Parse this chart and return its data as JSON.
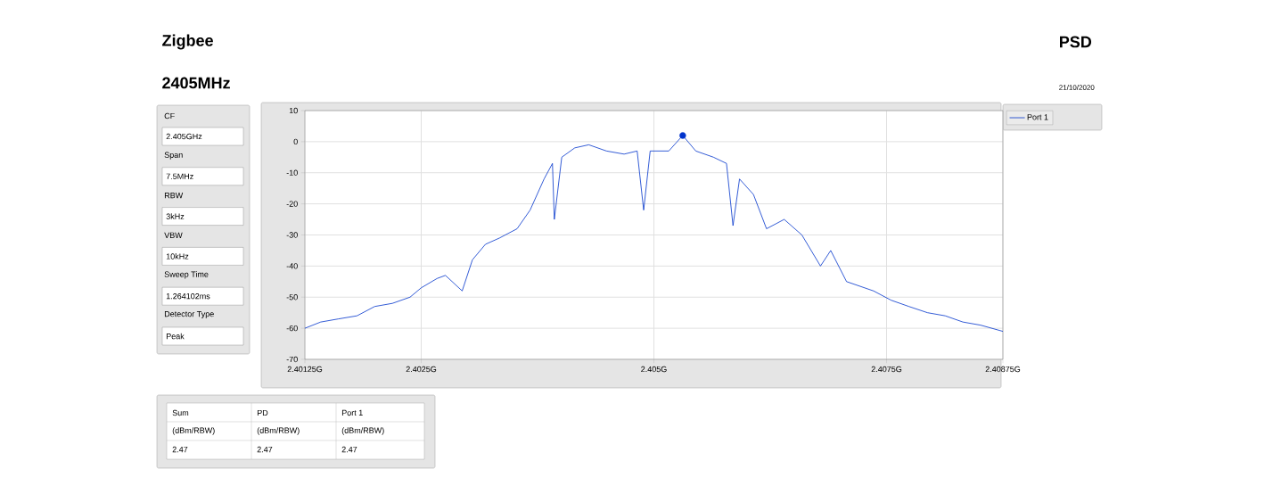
{
  "chart_data": {
    "type": "line",
    "title": "Zigbee",
    "subtitle": "2405MHz",
    "annotations": [
      "PSD",
      "21/10/2020",
      "CF",
      "2.405GHz",
      "Span",
      "7.5MHz",
      "RBW",
      "3kHz",
      "VBW",
      "10kHz",
      "Sweep Time",
      "1.264102ms",
      "Detector Type",
      "Peak",
      "Sum",
      "PD",
      "Port 1",
      "(dBm/RBW)",
      "(dBm/RBW)",
      "(dBm/RBW)",
      "2.47",
      "2.47",
      "2.47"
    ],
    "xlim": [
      2.40125,
      2.40875
    ],
    "xticks": [
      {
        "value": 2.40125,
        "label": "2.40125G"
      },
      {
        "value": 2.4025,
        "label": "2.4025G"
      },
      {
        "value": 2.405,
        "label": "2.405G"
      },
      {
        "value": 2.4075,
        "label": "2.4075G"
      },
      {
        "value": 2.40875,
        "label": "2.40875G"
      }
    ],
    "ylim": [
      -70,
      10
    ],
    "yticks": [
      -70,
      -60,
      -50,
      -40,
      -30,
      -20,
      -10,
      0,
      10
    ],
    "grid": true,
    "legend": "top right",
    "series": [
      {
        "name": "Port 1",
        "color": "#0033cc",
        "x": [
          2.40125,
          2.40142,
          2.40161,
          2.40181,
          2.402,
          2.40219,
          2.40238,
          2.4025,
          2.40267,
          2.40276,
          2.40294,
          2.40305,
          2.40319,
          2.40334,
          2.40353,
          2.40367,
          2.40382,
          2.40391,
          2.40393,
          2.40401,
          2.40415,
          2.4043,
          2.40449,
          2.40468,
          2.40482,
          2.40489,
          2.40496,
          2.40516,
          2.40531,
          2.40545,
          2.40564,
          2.40578,
          2.40585,
          2.40592,
          2.40607,
          2.40621,
          2.4064,
          2.40659,
          2.40679,
          2.4069,
          2.40707,
          2.40736,
          2.40755,
          2.40774,
          2.40794,
          2.40813,
          2.40832,
          2.40851,
          2.40875
        ],
        "values": [
          -60,
          -58,
          -57,
          -56,
          -53,
          -52,
          -50,
          -47,
          -44,
          -43,
          -48,
          -38,
          -33,
          -31,
          -28,
          -22,
          -12,
          -7,
          -25,
          -5,
          -2,
          -1,
          -3,
          -4,
          -3,
          -22,
          -3,
          -3,
          2,
          -3,
          -5,
          -7,
          -27,
          -12,
          -17,
          -28,
          -25,
          -30,
          -40,
          -35,
          -45,
          -48,
          -51,
          -53,
          -55,
          -56,
          -58,
          -59,
          -61
        ]
      },
      {
        "type": "scatter",
        "marker": "circle",
        "color": "#0033cc",
        "x": [
          2.40531
        ],
        "values": [
          2
        ]
      }
    ]
  }
}
